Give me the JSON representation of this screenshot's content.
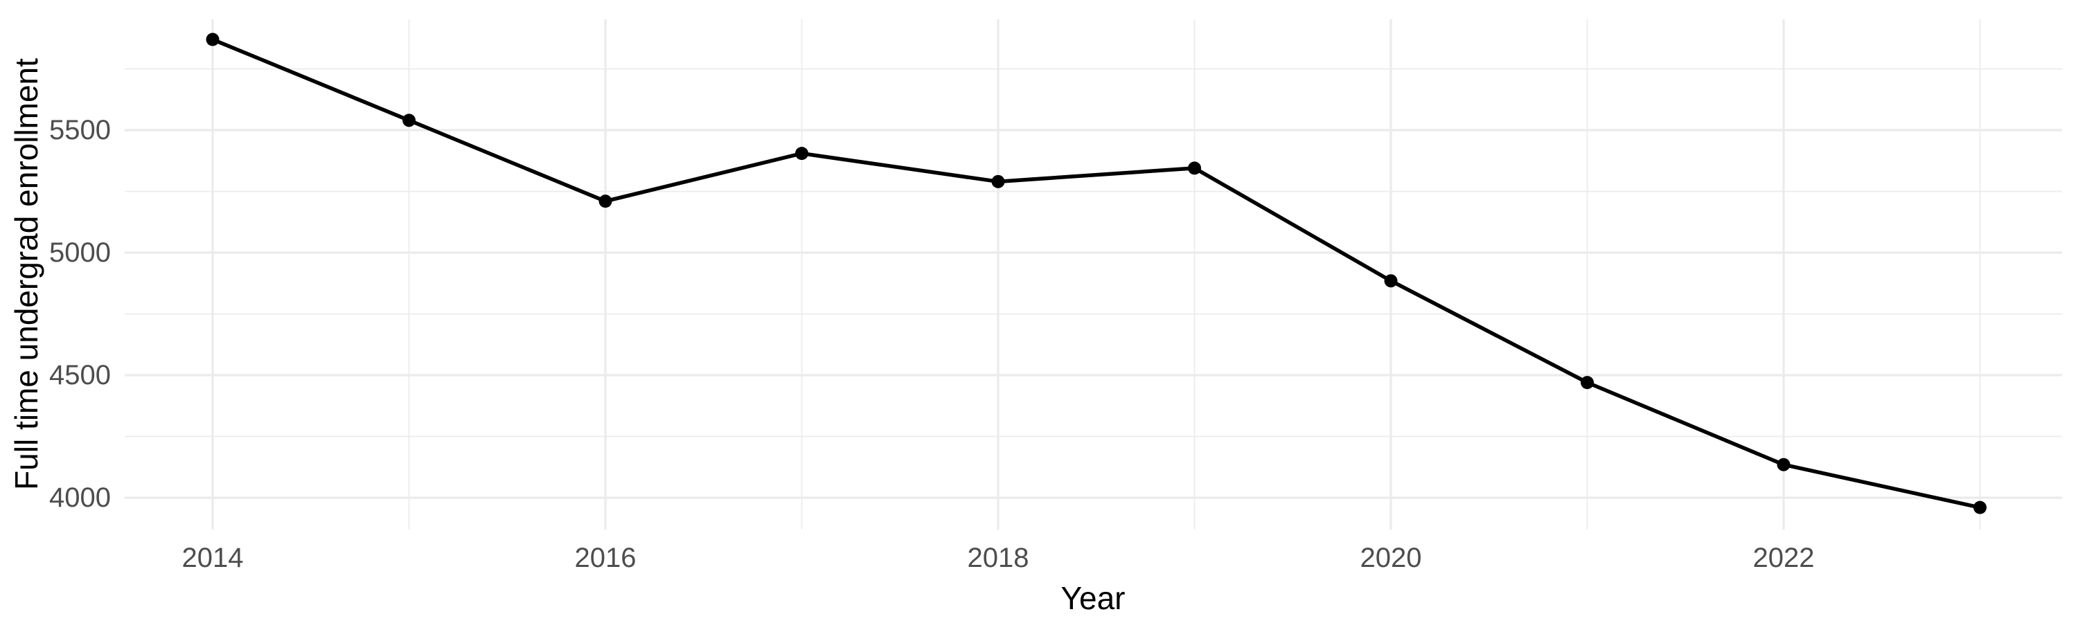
{
  "chart_data": {
    "type": "line",
    "title": "",
    "xlabel": "Year",
    "ylabel": "Full time undergrad enrollment",
    "x": [
      2014,
      2015,
      2016,
      2017,
      2018,
      2019,
      2020,
      2021,
      2022,
      2023
    ],
    "values": [
      5870,
      5540,
      5210,
      5405,
      5290,
      5345,
      4885,
      4470,
      4135,
      3960
    ],
    "series_name": "Full time undergrad enrollment",
    "x_major_ticks": [
      2014,
      2016,
      2018,
      2020,
      2022
    ],
    "x_major_tick_labels": [
      "2014",
      "2016",
      "2018",
      "2020",
      "2022"
    ],
    "x_minor_ticks": [
      2015,
      2017,
      2019,
      2021,
      2023
    ],
    "y_major_ticks": [
      4000,
      4500,
      5000,
      5500
    ],
    "y_major_tick_labels": [
      "4000",
      "4500",
      "5000",
      "5500"
    ],
    "y_minor_ticks": [
      4250,
      4750,
      5250,
      5750
    ],
    "xlim": [
      2013.552,
      2023.418
    ],
    "ylim": [
      3870,
      5952
    ],
    "grid": true,
    "legend": false,
    "colors": {
      "line": "#000000",
      "point": "#000000",
      "grid": "#EBEBEB",
      "tick_text": "#4D4D4D",
      "title_text": "#000000",
      "background": "#FFFFFF"
    }
  }
}
